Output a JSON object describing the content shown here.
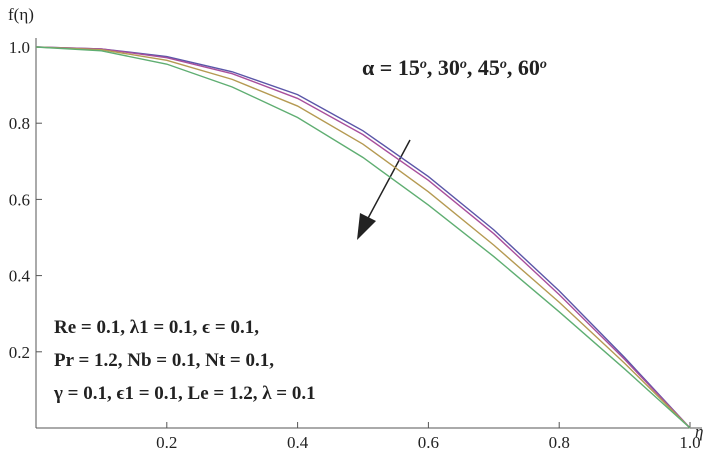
{
  "chart_data": {
    "type": "line",
    "x_label": "η",
    "y_label": "f(η)",
    "annotation_parts": [
      "α = 15",
      "o",
      ", 30",
      "o",
      ", 45",
      "o",
      ", 60",
      "o"
    ],
    "parameter_lines": [
      "Re = 0.1, λ1 = 0.1, ϵ = 0.1,",
      "Pr = 1.2, Nb = 0.1, Nt = 0.1,",
      "γ = 0.1, ϵ1 = 0.1, Le = 1.2, λ = 0.1"
    ],
    "x": [
      0,
      0.1,
      0.2,
      0.3,
      0.4,
      0.5,
      0.6,
      0.7,
      0.8,
      0.9,
      1.0
    ],
    "series": [
      {
        "color": "#5a56a8",
        "values": [
          1,
          0.995,
          0.975,
          0.935,
          0.875,
          0.78,
          0.66,
          0.52,
          0.36,
          0.185,
          0
        ]
      },
      {
        "color": "#a84f9c",
        "values": [
          1,
          0.995,
          0.972,
          0.93,
          0.865,
          0.77,
          0.65,
          0.51,
          0.35,
          0.18,
          0
        ]
      },
      {
        "color": "#b59a52",
        "values": [
          1,
          0.993,
          0.965,
          0.915,
          0.845,
          0.745,
          0.62,
          0.48,
          0.33,
          0.17,
          0
        ]
      },
      {
        "color": "#5fae72",
        "values": [
          1,
          0.99,
          0.955,
          0.895,
          0.815,
          0.71,
          0.585,
          0.45,
          0.305,
          0.155,
          0
        ]
      }
    ],
    "xlim": [
      0,
      1.0
    ],
    "ylim": [
      0,
      1.0
    ],
    "xticks": [
      0.2,
      0.4,
      0.6,
      0.8,
      {
        "value": 1.0,
        "label": "1.0"
      }
    ],
    "yticks": [
      0.2,
      0.4,
      0.6,
      0.8,
      {
        "value": 1.0,
        "label": "1.0"
      }
    ]
  }
}
